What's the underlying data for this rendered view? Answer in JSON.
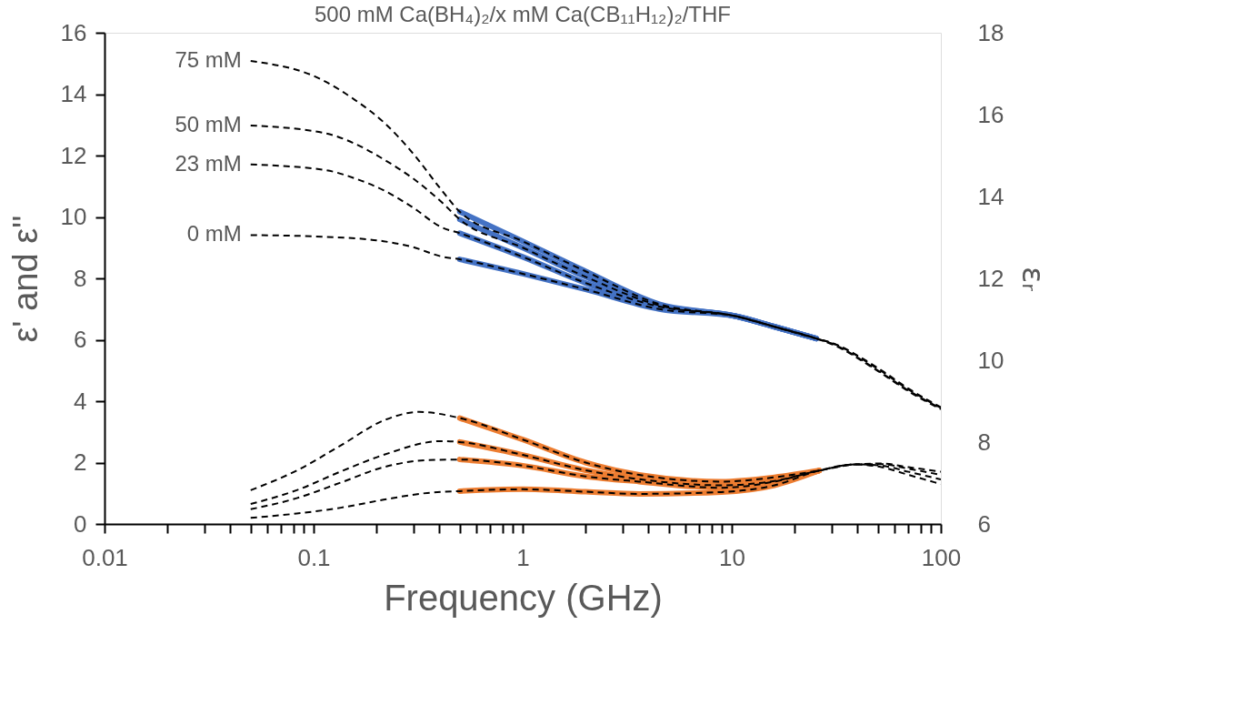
{
  "chart_data": {
    "type": "line",
    "title": "500 mM Ca(BH₄)₂/x mM Ca(CB₁₁H₁₂)₂/THF",
    "xlabel": "Frequency (GHz)",
    "ylabel": "ε' and ε''",
    "y2label": "εᵣ",
    "log": "x",
    "xlim": [
      0.01,
      100
    ],
    "xticks": [
      0.01,
      {
        "value": 0.02,
        "label": null
      },
      {
        "value": 0.03,
        "label": null
      },
      {
        "value": 0.04,
        "label": null
      },
      {
        "value": 0.05,
        "label": null
      },
      {
        "value": 0.06,
        "label": null
      },
      {
        "value": 0.07,
        "label": null
      },
      {
        "value": 0.08,
        "label": null
      },
      {
        "value": 0.09,
        "label": null
      },
      0.1,
      {
        "value": 0.2,
        "label": null
      },
      {
        "value": 0.3,
        "label": null
      },
      {
        "value": 0.4,
        "label": null
      },
      {
        "value": 0.5,
        "label": null
      },
      {
        "value": 0.6,
        "label": null
      },
      {
        "value": 0.7,
        "label": null
      },
      {
        "value": 0.8,
        "label": null
      },
      {
        "value": 0.9,
        "label": null
      },
      1,
      {
        "value": 2,
        "label": null
      },
      {
        "value": 3,
        "label": null
      },
      {
        "value": 4,
        "label": null
      },
      {
        "value": 5,
        "label": null
      },
      {
        "value": 6,
        "label": null
      },
      {
        "value": 7,
        "label": null
      },
      {
        "value": 8,
        "label": null
      },
      {
        "value": 9,
        "label": null
      },
      10,
      {
        "value": 20,
        "label": null
      },
      {
        "value": 30,
        "label": null
      },
      {
        "value": 40,
        "label": null
      },
      {
        "value": 50,
        "label": null
      },
      {
        "value": 60,
        "label": null
      },
      {
        "value": 70,
        "label": null
      },
      {
        "value": 80,
        "label": null
      },
      {
        "value": 90,
        "label": null
      },
      100
    ],
    "ylim": [
      0,
      16
    ],
    "yticks": [
      0,
      2,
      4,
      6,
      8,
      10,
      12,
      14,
      16
    ],
    "y2lim": [
      6,
      18
    ],
    "y2ticks": [
      6,
      8,
      10,
      12,
      14,
      16,
      18
    ],
    "grid": false,
    "legend": false,
    "series": [
      {
        "line_style": "solid",
        "color": "#4472c4",
        "x": [
          0.5,
          1,
          2,
          4.5,
          10.4,
          15.9,
          25.4
        ],
        "values": [
          10.17,
          9.21,
          8.23,
          7.16,
          6.77,
          6.43,
          6.04
        ]
      },
      {
        "line_style": "solid",
        "color": "#4472c4",
        "x": [
          0.5,
          1,
          2,
          4.5,
          10.4,
          15.9,
          25.4
        ],
        "values": [
          9.92,
          9.0,
          8.05,
          7.12,
          6.77,
          6.43,
          6.04
        ]
      },
      {
        "line_style": "solid",
        "color": "#4472c4",
        "x": [
          0.5,
          1,
          2,
          4.5,
          10.4,
          15.9,
          25.4
        ],
        "values": [
          9.47,
          8.7,
          7.85,
          7.08,
          6.77,
          6.43,
          6.04
        ]
      },
      {
        "line_style": "solid",
        "color": "#4472c4",
        "x": [
          0.5,
          1,
          2,
          4.5,
          10.4,
          15.9,
          25.4
        ],
        "values": [
          8.62,
          8.15,
          7.64,
          7.0,
          6.77,
          6.43,
          6.04
        ]
      },
      {
        "line_style": "solid",
        "color": "#ed7d31",
        "x": [
          0.5,
          1,
          2,
          3.6,
          8.9,
          16,
          26.2
        ],
        "values": [
          3.45,
          2.75,
          2.0,
          1.6,
          1.38,
          1.52,
          1.74
        ]
      },
      {
        "line_style": "solid",
        "color": "#ed7d31",
        "x": [
          0.5,
          1,
          2,
          3.6,
          8.9,
          16,
          26.2
        ],
        "values": [
          2.67,
          2.25,
          1.75,
          1.46,
          1.26,
          1.4,
          1.74
        ]
      },
      {
        "line_style": "solid",
        "color": "#ed7d31",
        "x": [
          0.5,
          1,
          2,
          3.6,
          8.9,
          16,
          26.2
        ],
        "values": [
          2.1,
          1.9,
          1.55,
          1.38,
          1.18,
          1.38,
          1.74
        ]
      },
      {
        "line_style": "solid",
        "color": "#ed7d31",
        "x": [
          0.5,
          1,
          2,
          3.6,
          8.9,
          16,
          26.2
        ],
        "values": [
          1.07,
          1.13,
          1.05,
          0.98,
          1.04,
          1.26,
          1.74
        ]
      },
      {
        "name": "75 mM",
        "line_style": "dashed",
        "color": "#000000",
        "x": [
          0.05,
          0.108,
          0.157,
          0.216,
          0.298,
          0.41,
          0.5,
          1,
          2,
          4.5,
          10.4,
          15.9,
          25.4,
          30,
          50,
          70,
          100
        ],
        "values": [
          15.08,
          14.49,
          13.82,
          13.09,
          12.08,
          10.87,
          10.17,
          9.21,
          8.23,
          7.16,
          6.77,
          6.43,
          6.04,
          5.9,
          5.08,
          4.41,
          3.8
        ]
      },
      {
        "name": "50 mM",
        "line_style": "dashed",
        "color": "#000000",
        "x": [
          0.05,
          0.115,
          0.157,
          0.216,
          0.298,
          0.41,
          0.5,
          1,
          2,
          4.5,
          10.4,
          15.9,
          25.4,
          30,
          50,
          70,
          100
        ],
        "values": [
          12.98,
          12.72,
          12.39,
          11.88,
          11.26,
          10.48,
          9.92,
          9.0,
          8.05,
          7.12,
          6.77,
          6.43,
          6.04,
          5.9,
          5.05,
          4.38,
          3.78
        ]
      },
      {
        "name": "23 mM",
        "line_style": "dashed",
        "color": "#000000",
        "x": [
          0.05,
          0.115,
          0.157,
          0.216,
          0.298,
          0.41,
          0.5,
          1,
          2,
          4.5,
          10.4,
          15.9,
          25.4,
          30,
          50,
          70,
          100
        ],
        "values": [
          11.71,
          11.52,
          11.26,
          10.87,
          10.31,
          9.66,
          9.47,
          8.7,
          7.85,
          7.08,
          6.77,
          6.43,
          6.04,
          5.88,
          5.0,
          4.35,
          3.76
        ]
      },
      {
        "name": "0 mM",
        "line_style": "dashed",
        "color": "#000000",
        "x": [
          0.05,
          0.115,
          0.216,
          0.298,
          0.41,
          0.5,
          1,
          2,
          4.5,
          10.4,
          15.9,
          25.4,
          30,
          50,
          70,
          100
        ],
        "values": [
          9.41,
          9.35,
          9.21,
          9.02,
          8.71,
          8.62,
          8.15,
          7.64,
          7.0,
          6.77,
          6.43,
          6.04,
          5.86,
          4.98,
          4.32,
          3.74
        ]
      },
      {
        "line_style": "dashed",
        "color": "#000000",
        "x": [
          0.05,
          0.083,
          0.135,
          0.216,
          0.32,
          0.5,
          1,
          2,
          3.6,
          8.9,
          16,
          26.2,
          39,
          52,
          70,
          100
        ],
        "values": [
          1.1,
          1.74,
          2.56,
          3.37,
          3.65,
          3.45,
          2.75,
          2.0,
          1.6,
          1.38,
          1.52,
          1.74,
          1.94,
          1.97,
          1.85,
          1.7
        ]
      },
      {
        "line_style": "dashed",
        "color": "#000000",
        "x": [
          0.05,
          0.083,
          0.135,
          0.216,
          0.41,
          0.5,
          1,
          2,
          3.6,
          8.9,
          16,
          26.2,
          39,
          52,
          70,
          100
        ],
        "values": [
          0.65,
          1.1,
          1.71,
          2.25,
          2.7,
          2.67,
          2.25,
          1.75,
          1.46,
          1.26,
          1.4,
          1.74,
          1.94,
          1.95,
          1.8,
          1.6
        ]
      },
      {
        "line_style": "dashed",
        "color": "#000000",
        "x": [
          0.05,
          0.083,
          0.135,
          0.216,
          0.35,
          0.5,
          1,
          2,
          3.6,
          8.9,
          16,
          26.2,
          39,
          52,
          70,
          100
        ],
        "values": [
          0.48,
          0.84,
          1.35,
          1.85,
          2.08,
          2.1,
          1.9,
          1.55,
          1.38,
          1.18,
          1.38,
          1.74,
          1.94,
          1.9,
          1.7,
          1.45
        ]
      },
      {
        "line_style": "dashed",
        "color": "#000000",
        "x": [
          0.05,
          0.083,
          0.135,
          0.216,
          0.35,
          0.5,
          1,
          2,
          3.6,
          8.9,
          16,
          26.2,
          39,
          52,
          70,
          100
        ],
        "values": [
          0.2,
          0.34,
          0.53,
          0.79,
          1.01,
          1.07,
          1.13,
          1.05,
          0.98,
          1.04,
          1.26,
          1.74,
          1.94,
          1.85,
          1.6,
          1.3
        ]
      }
    ]
  }
}
